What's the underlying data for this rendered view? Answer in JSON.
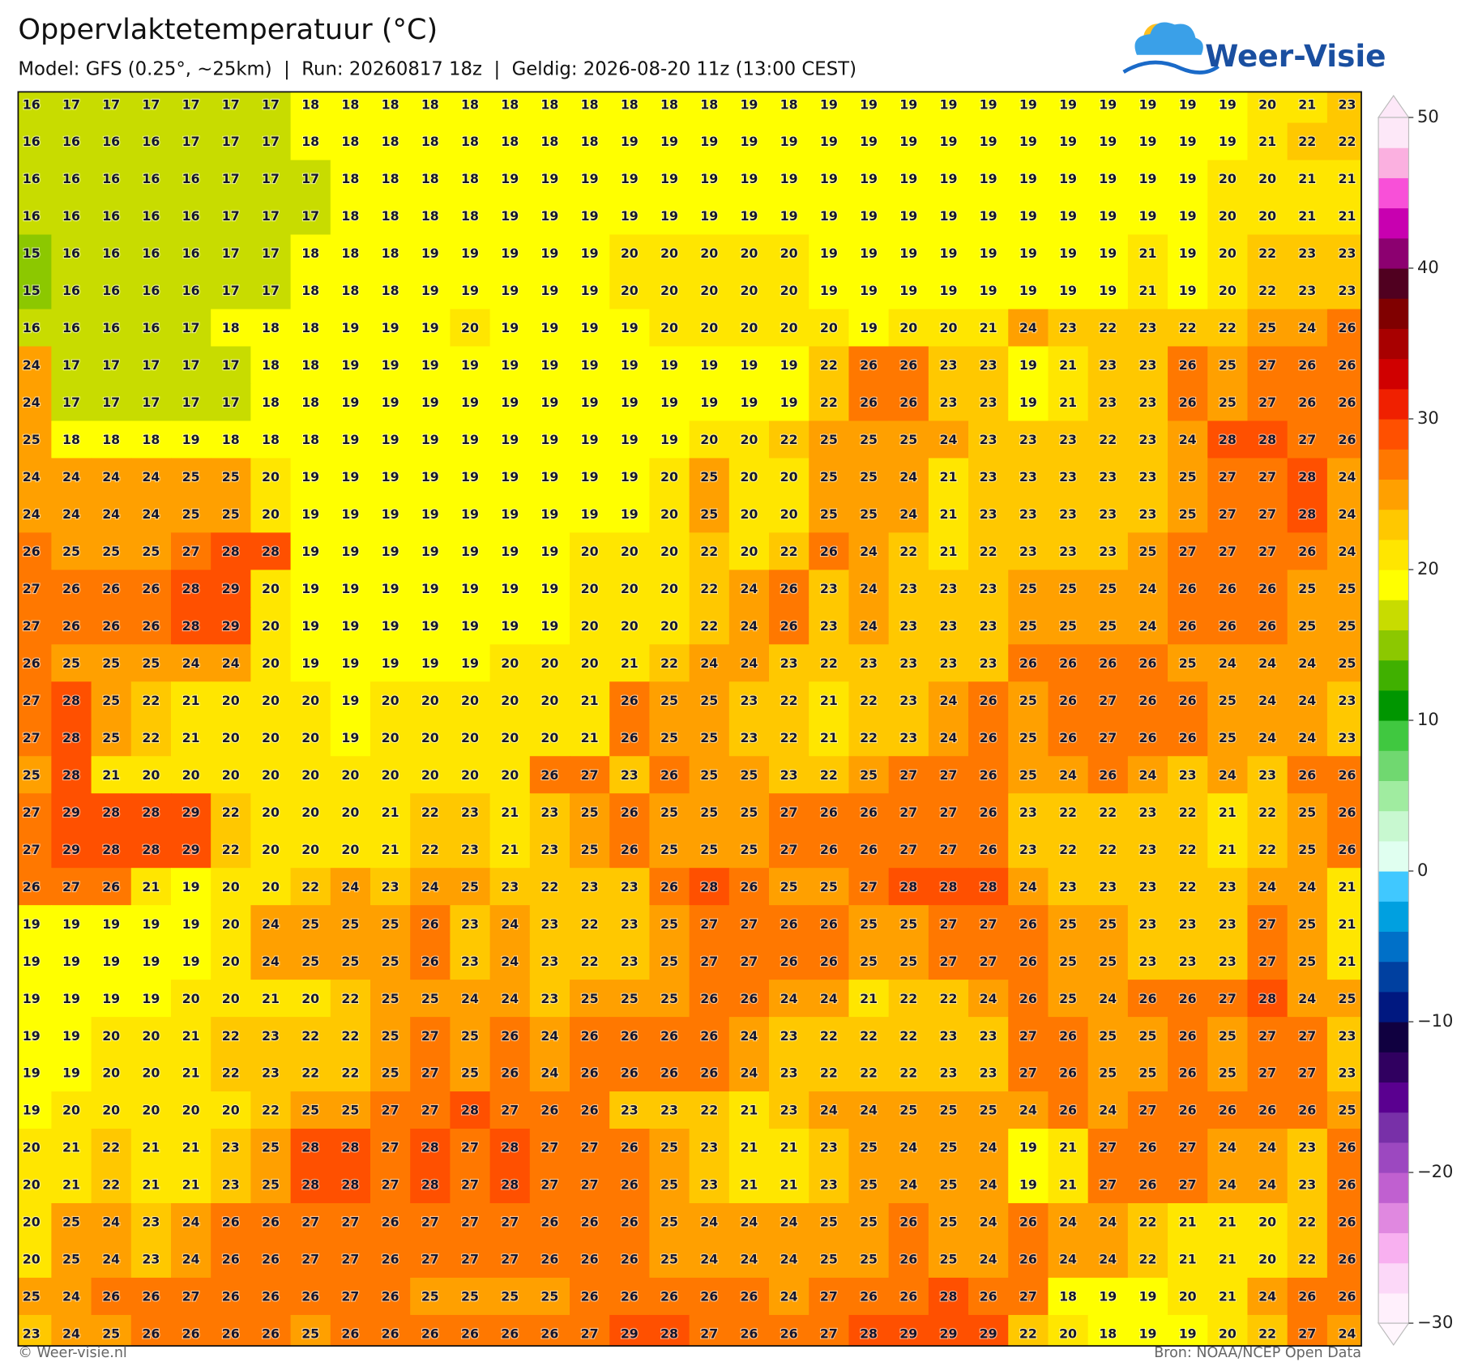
{
  "header": {
    "title": "Oppervlaktetemperatuur (°C)",
    "subtitle": "Model: GFS (0.25°, ~25km)  |  Run: 20260817 18z  |  Geldig: 2026-08-20 11z (13:00 CEST)",
    "logo": "Weer-Visie"
  },
  "map": {
    "rows": [
      [
        16,
        17,
        17,
        17,
        17,
        17,
        17,
        18,
        18,
        18,
        18,
        18,
        18,
        18,
        18,
        18,
        18,
        18,
        19,
        18,
        19,
        19,
        19,
        19,
        19,
        19,
        19,
        19,
        19,
        19,
        19,
        20,
        21,
        23
      ],
      [
        16,
        16,
        16,
        16,
        17,
        17,
        17,
        18,
        18,
        18,
        18,
        18,
        18,
        18,
        18,
        19,
        19,
        19,
        19,
        19,
        19,
        19,
        19,
        19,
        19,
        19,
        19,
        19,
        19,
        19,
        19,
        21,
        22,
        22
      ],
      [
        16,
        16,
        16,
        16,
        16,
        17,
        17,
        17,
        18,
        18,
        18,
        18,
        19,
        19,
        19,
        19,
        19,
        19,
        19,
        19,
        19,
        19,
        19,
        19,
        19,
        19,
        19,
        19,
        19,
        19,
        20,
        20,
        21,
        21
      ],
      [
        16,
        16,
        16,
        16,
        16,
        17,
        17,
        17,
        18,
        18,
        18,
        18,
        19,
        19,
        19,
        19,
        19,
        19,
        19,
        19,
        19,
        19,
        19,
        19,
        19,
        19,
        19,
        19,
        19,
        19,
        20,
        20,
        21,
        21
      ],
      [
        15,
        16,
        16,
        16,
        16,
        17,
        17,
        18,
        18,
        18,
        19,
        19,
        19,
        19,
        19,
        20,
        20,
        20,
        20,
        20,
        19,
        19,
        19,
        19,
        19,
        19,
        19,
        19,
        21,
        19,
        20,
        22,
        23,
        23
      ],
      [
        15,
        16,
        16,
        16,
        16,
        17,
        17,
        18,
        18,
        18,
        19,
        19,
        19,
        19,
        19,
        20,
        20,
        20,
        20,
        20,
        19,
        19,
        19,
        19,
        19,
        19,
        19,
        19,
        21,
        19,
        20,
        22,
        23,
        23
      ],
      [
        16,
        16,
        16,
        16,
        17,
        18,
        18,
        18,
        19,
        19,
        19,
        20,
        19,
        19,
        19,
        19,
        20,
        20,
        20,
        20,
        20,
        19,
        20,
        20,
        21,
        24,
        23,
        22,
        23,
        22,
        22,
        25,
        24,
        26
      ],
      [
        24,
        17,
        17,
        17,
        17,
        17,
        18,
        18,
        19,
        19,
        19,
        19,
        19,
        19,
        19,
        19,
        19,
        19,
        19,
        19,
        22,
        26,
        26,
        23,
        23,
        19,
        21,
        23,
        23,
        26,
        25,
        27,
        26,
        26
      ],
      [
        24,
        17,
        17,
        17,
        17,
        17,
        18,
        18,
        19,
        19,
        19,
        19,
        19,
        19,
        19,
        19,
        19,
        19,
        19,
        19,
        22,
        26,
        26,
        23,
        23,
        19,
        21,
        23,
        23,
        26,
        25,
        27,
        26,
        26
      ],
      [
        25,
        18,
        18,
        18,
        19,
        18,
        18,
        18,
        19,
        19,
        19,
        19,
        19,
        19,
        19,
        19,
        19,
        20,
        20,
        22,
        25,
        25,
        25,
        24,
        23,
        23,
        23,
        22,
        23,
        24,
        28,
        28,
        27,
        26
      ],
      [
        24,
        24,
        24,
        24,
        25,
        25,
        20,
        19,
        19,
        19,
        19,
        19,
        19,
        19,
        19,
        19,
        20,
        25,
        20,
        20,
        25,
        25,
        24,
        21,
        23,
        23,
        23,
        23,
        23,
        25,
        27,
        27,
        28,
        24
      ],
      [
        24,
        24,
        24,
        24,
        25,
        25,
        20,
        19,
        19,
        19,
        19,
        19,
        19,
        19,
        19,
        19,
        20,
        25,
        20,
        20,
        25,
        25,
        24,
        21,
        23,
        23,
        23,
        23,
        23,
        25,
        27,
        27,
        28,
        24
      ],
      [
        26,
        25,
        25,
        25,
        27,
        28,
        28,
        19,
        19,
        19,
        19,
        19,
        19,
        19,
        20,
        20,
        20,
        22,
        20,
        22,
        26,
        24,
        22,
        21,
        22,
        23,
        23,
        23,
        25,
        27,
        27,
        27,
        26,
        24
      ],
      [
        27,
        26,
        26,
        26,
        28,
        29,
        20,
        19,
        19,
        19,
        19,
        19,
        19,
        19,
        20,
        20,
        20,
        22,
        24,
        26,
        23,
        24,
        23,
        23,
        23,
        25,
        25,
        25,
        24,
        26,
        26,
        26,
        25,
        25
      ],
      [
        27,
        26,
        26,
        26,
        28,
        29,
        20,
        19,
        19,
        19,
        19,
        19,
        19,
        19,
        20,
        20,
        20,
        22,
        24,
        26,
        23,
        24,
        23,
        23,
        23,
        25,
        25,
        25,
        24,
        26,
        26,
        26,
        25,
        25
      ],
      [
        26,
        25,
        25,
        25,
        24,
        24,
        20,
        19,
        19,
        19,
        19,
        19,
        20,
        20,
        20,
        21,
        22,
        24,
        24,
        23,
        22,
        23,
        23,
        23,
        23,
        26,
        26,
        26,
        26,
        25,
        24,
        24,
        24,
        25
      ],
      [
        27,
        28,
        25,
        22,
        21,
        20,
        20,
        20,
        19,
        20,
        20,
        20,
        20,
        20,
        21,
        26,
        25,
        25,
        23,
        22,
        21,
        22,
        23,
        24,
        26,
        25,
        26,
        27,
        26,
        26,
        25,
        24,
        24,
        23
      ],
      [
        27,
        28,
        25,
        22,
        21,
        20,
        20,
        20,
        19,
        20,
        20,
        20,
        20,
        20,
        21,
        26,
        25,
        25,
        23,
        22,
        21,
        22,
        23,
        24,
        26,
        25,
        26,
        27,
        26,
        26,
        25,
        24,
        24,
        23
      ],
      [
        25,
        28,
        21,
        20,
        20,
        20,
        20,
        20,
        20,
        20,
        20,
        20,
        20,
        26,
        27,
        23,
        26,
        25,
        25,
        23,
        22,
        25,
        27,
        27,
        26,
        25,
        24,
        26,
        24,
        23,
        24,
        23,
        26,
        26
      ],
      [
        27,
        29,
        28,
        28,
        29,
        22,
        20,
        20,
        20,
        21,
        22,
        23,
        21,
        23,
        25,
        26,
        25,
        25,
        25,
        27,
        26,
        26,
        27,
        27,
        26,
        23,
        22,
        22,
        23,
        22,
        21,
        22,
        25,
        26
      ],
      [
        27,
        29,
        28,
        28,
        29,
        22,
        20,
        20,
        20,
        21,
        22,
        23,
        21,
        23,
        25,
        26,
        25,
        25,
        25,
        27,
        26,
        26,
        27,
        27,
        26,
        23,
        22,
        22,
        23,
        22,
        21,
        22,
        25,
        26
      ],
      [
        26,
        27,
        26,
        21,
        19,
        20,
        20,
        22,
        24,
        23,
        24,
        25,
        23,
        22,
        23,
        23,
        26,
        28,
        26,
        25,
        25,
        27,
        28,
        28,
        28,
        24,
        23,
        23,
        23,
        22,
        23,
        24,
        24,
        21
      ],
      [
        19,
        19,
        19,
        19,
        19,
        20,
        24,
        25,
        25,
        25,
        26,
        23,
        24,
        23,
        22,
        23,
        25,
        27,
        27,
        26,
        26,
        25,
        25,
        27,
        27,
        26,
        25,
        25,
        23,
        23,
        23,
        27,
        25,
        21
      ],
      [
        19,
        19,
        19,
        19,
        19,
        20,
        24,
        25,
        25,
        25,
        26,
        23,
        24,
        23,
        22,
        23,
        25,
        27,
        27,
        26,
        26,
        25,
        25,
        27,
        27,
        26,
        25,
        25,
        23,
        23,
        23,
        27,
        25,
        21
      ],
      [
        19,
        19,
        19,
        19,
        20,
        20,
        21,
        20,
        22,
        25,
        25,
        24,
        24,
        23,
        25,
        25,
        25,
        26,
        26,
        24,
        24,
        21,
        22,
        22,
        24,
        26,
        25,
        24,
        26,
        26,
        27,
        28,
        24,
        25
      ],
      [
        19,
        19,
        20,
        20,
        21,
        22,
        23,
        22,
        22,
        25,
        27,
        25,
        26,
        24,
        26,
        26,
        26,
        26,
        24,
        23,
        22,
        22,
        22,
        23,
        23,
        27,
        26,
        25,
        25,
        26,
        25,
        27,
        27,
        23
      ],
      [
        19,
        19,
        20,
        20,
        21,
        22,
        23,
        22,
        22,
        25,
        27,
        25,
        26,
        24,
        26,
        26,
        26,
        26,
        24,
        23,
        22,
        22,
        22,
        23,
        23,
        27,
        26,
        25,
        25,
        26,
        25,
        27,
        27,
        23
      ],
      [
        19,
        20,
        20,
        20,
        20,
        20,
        22,
        25,
        25,
        27,
        27,
        28,
        27,
        26,
        26,
        23,
        23,
        22,
        21,
        23,
        24,
        24,
        25,
        25,
        25,
        24,
        26,
        24,
        27,
        26,
        26,
        26,
        26,
        25
      ],
      [
        20,
        21,
        22,
        21,
        21,
        23,
        25,
        28,
        28,
        27,
        28,
        27,
        28,
        27,
        27,
        26,
        25,
        23,
        21,
        21,
        23,
        25,
        24,
        25,
        24,
        19,
        21,
        27,
        26,
        27,
        24,
        24,
        23,
        26
      ],
      [
        20,
        21,
        22,
        21,
        21,
        23,
        25,
        28,
        28,
        27,
        28,
        27,
        28,
        27,
        27,
        26,
        25,
        23,
        21,
        21,
        23,
        25,
        24,
        25,
        24,
        19,
        21,
        27,
        26,
        27,
        24,
        24,
        23,
        26
      ],
      [
        20,
        25,
        24,
        23,
        24,
        26,
        26,
        27,
        27,
        26,
        27,
        27,
        27,
        26,
        26,
        26,
        25,
        24,
        24,
        24,
        25,
        25,
        26,
        25,
        24,
        26,
        24,
        24,
        22,
        21,
        21,
        20,
        22,
        26
      ],
      [
        20,
        25,
        24,
        23,
        24,
        26,
        26,
        27,
        27,
        26,
        27,
        27,
        27,
        26,
        26,
        26,
        25,
        24,
        24,
        24,
        25,
        25,
        26,
        25,
        24,
        26,
        24,
        24,
        22,
        21,
        21,
        20,
        22,
        26
      ],
      [
        25,
        24,
        26,
        26,
        27,
        26,
        26,
        26,
        27,
        26,
        25,
        25,
        25,
        25,
        26,
        26,
        26,
        26,
        26,
        24,
        27,
        26,
        26,
        28,
        26,
        27,
        18,
        19,
        19,
        20,
        21,
        24,
        26,
        26
      ],
      [
        23,
        24,
        25,
        26,
        26,
        26,
        26,
        25,
        26,
        26,
        26,
        26,
        26,
        26,
        27,
        29,
        28,
        27,
        26,
        26,
        27,
        28,
        29,
        29,
        29,
        22,
        20,
        18,
        19,
        19,
        20,
        22,
        27,
        24
      ]
    ],
    "colorbar": {
      "range": [
        -30,
        50
      ],
      "ticks": [
        50,
        40,
        30,
        20,
        10,
        0,
        {
          "value": -10,
          "label": "−10"
        },
        {
          "value": -20,
          "label": "−20"
        },
        {
          "value": -30,
          "label": "−30"
        }
      ],
      "colors": [
        "#fff0fc",
        "#fcd8f8",
        "#f8b0f0",
        "#e088e0",
        "#c060d0",
        "#9c48c0",
        "#7830a8",
        "#5a0090",
        "#300060",
        "#100040",
        "#001880",
        "#0040a0",
        "#0070c8",
        "#00a0e0",
        "#40c8ff",
        "#e0fff0",
        "#c8f8d0",
        "#a0eca0",
        "#70d870",
        "#40c840",
        "#009600",
        "#40b000",
        "#8cc800",
        "#c8dc00",
        "#ffff00",
        "#ffe600",
        "#ffc800",
        "#ffa000",
        "#ff7800",
        "#ff5000",
        "#f02000",
        "#d00000",
        "#a80000",
        "#800000",
        "#500020",
        "#8c0070",
        "#c800b0",
        "#f850d8",
        "#fbb0e0",
        "#fde8f8"
      ]
    }
  },
  "footer": {
    "credit": "© Weer-visie.nl",
    "source": "Bron: NOAA/NCEP Open Data"
  }
}
